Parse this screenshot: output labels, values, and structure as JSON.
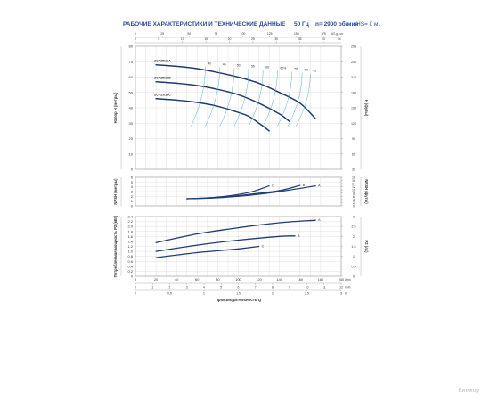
{
  "header": {
    "title": "РАБОЧИЕ ХАРАКТЕРИСТИКИ И ТЕХНИЧЕСКИЕ ДАННЫЕ",
    "freq": "50 Гц",
    "speed": "n= 2900 об/мин",
    "hs": "HS= 0 м."
  },
  "watermark": "Вимхор",
  "colors": {
    "curve": "#1f3c6e",
    "eff": "#5aa9d6",
    "grid": "#d8d8d8",
    "frame": "#999999",
    "label": "#333333",
    "title": "#2b4a9a"
  },
  "chart_data": [
    {
      "type": "line",
      "id": "head",
      "ylabel": "Напор H (метры)",
      "ylabel_right": "H (футы)",
      "ylim": [
        0,
        80
      ],
      "yticks": [
        "0",
        "10",
        "20",
        "30",
        "40",
        "50",
        "60",
        "70",
        "80"
      ],
      "yticks_right": [
        "30",
        "60",
        "90",
        "120",
        "150",
        "180",
        "210",
        "240",
        "255"
      ],
      "top_axis1_ticks": [
        "0",
        "5",
        "10",
        "15",
        "20",
        "25",
        "30",
        "35",
        "40"
      ],
      "top_axis1_unit": "l/s",
      "top_axis2_ticks": [
        "0",
        "25",
        "50",
        "75",
        "100",
        "125",
        "150",
        "175"
      ],
      "top_axis2_unit": "US g.p.m.",
      "series": [
        {
          "name": "2CP25/16A",
          "x": [
            20,
            40,
            60,
            80,
            100,
            120,
            140,
            160,
            175
          ],
          "values": [
            68,
            67,
            65.5,
            63,
            60,
            56,
            50,
            43,
            33
          ]
        },
        {
          "name": "2CP25/16B",
          "x": [
            20,
            40,
            60,
            80,
            100,
            120,
            140,
            150
          ],
          "values": [
            57,
            56,
            54.5,
            52,
            48.5,
            43,
            36,
            31
          ]
        },
        {
          "name": "2CP25/16C",
          "x": [
            20,
            40,
            60,
            80,
            100,
            110,
            120,
            130
          ],
          "values": [
            46,
            45,
            43.5,
            41,
            37,
            34.5,
            30,
            25
          ]
        }
      ],
      "efficiency_labels": [
        "40",
        "45",
        "50",
        "55",
        "60",
        "62%",
        "55",
        "50",
        "45"
      ]
    },
    {
      "type": "line",
      "id": "npsh",
      "ylabel": "NPSH (метры)",
      "ylabel_right": "NPSH (футы)",
      "ylim": [
        0,
        6
      ],
      "yticks": [
        "0",
        "1",
        "2",
        "3",
        "4",
        "5",
        "6"
      ],
      "yticks_right": [
        "0",
        "2",
        "4",
        "6",
        "8",
        "10",
        "12",
        "14",
        "16",
        "18"
      ],
      "series": [
        {
          "name": "A",
          "x": [
            50,
            80,
            110,
            140,
            175
          ],
          "values": [
            1.5,
            1.7,
            2.2,
            3,
            4.2
          ]
        },
        {
          "name": "B",
          "x": [
            50,
            80,
            110,
            140,
            160
          ],
          "values": [
            1.5,
            1.75,
            2.4,
            3.2,
            4.3
          ]
        },
        {
          "name": "C",
          "x": [
            50,
            80,
            110,
            130
          ],
          "values": [
            1.5,
            1.85,
            2.8,
            4.2
          ]
        }
      ]
    },
    {
      "type": "line",
      "id": "power",
      "ylabel": "Потребляемая мощность P2 (кВт)",
      "ylabel_right": "P2 (лс)",
      "ylim": [
        0,
        2.4
      ],
      "yticks": [
        "0",
        "0.2",
        "0.4",
        "0.6",
        "0.8",
        "1.0",
        "1.2",
        "1.4",
        "1.6",
        "1.8",
        "2.0",
        "2.2",
        "2.4"
      ],
      "yticks_right": [
        "0",
        "0.5",
        "1",
        "1.5",
        "2",
        "2.5",
        "3"
      ],
      "xlabel": "Производительность Q",
      "xlim": [
        0,
        200
      ],
      "xticks": [
        "0",
        "20",
        "40",
        "60",
        "80",
        "100",
        "120",
        "140",
        "160",
        "180",
        "200"
      ],
      "xunit": "l/min",
      "bottom_axis1_ticks": [
        "0",
        "1",
        "2",
        "3",
        "4",
        "5",
        "6",
        "7",
        "8",
        "9",
        "10",
        "11",
        "12"
      ],
      "bottom_axis1_unit": "m³/h",
      "bottom_axis2_ticks": [
        "0",
        "0.5",
        "1",
        "1.5",
        "2",
        "2.5",
        "3"
      ],
      "bottom_axis2_unit": "l/s",
      "series": [
        {
          "name": "A",
          "x": [
            20,
            60,
            100,
            140,
            175
          ],
          "values": [
            1.35,
            1.7,
            1.95,
            2.15,
            2.25
          ]
        },
        {
          "name": "B",
          "x": [
            20,
            60,
            100,
            140,
            155
          ],
          "values": [
            1.0,
            1.25,
            1.45,
            1.6,
            1.62
          ]
        },
        {
          "name": "C",
          "x": [
            20,
            60,
            100,
            120
          ],
          "values": [
            0.75,
            0.95,
            1.1,
            1.2
          ]
        }
      ]
    }
  ]
}
